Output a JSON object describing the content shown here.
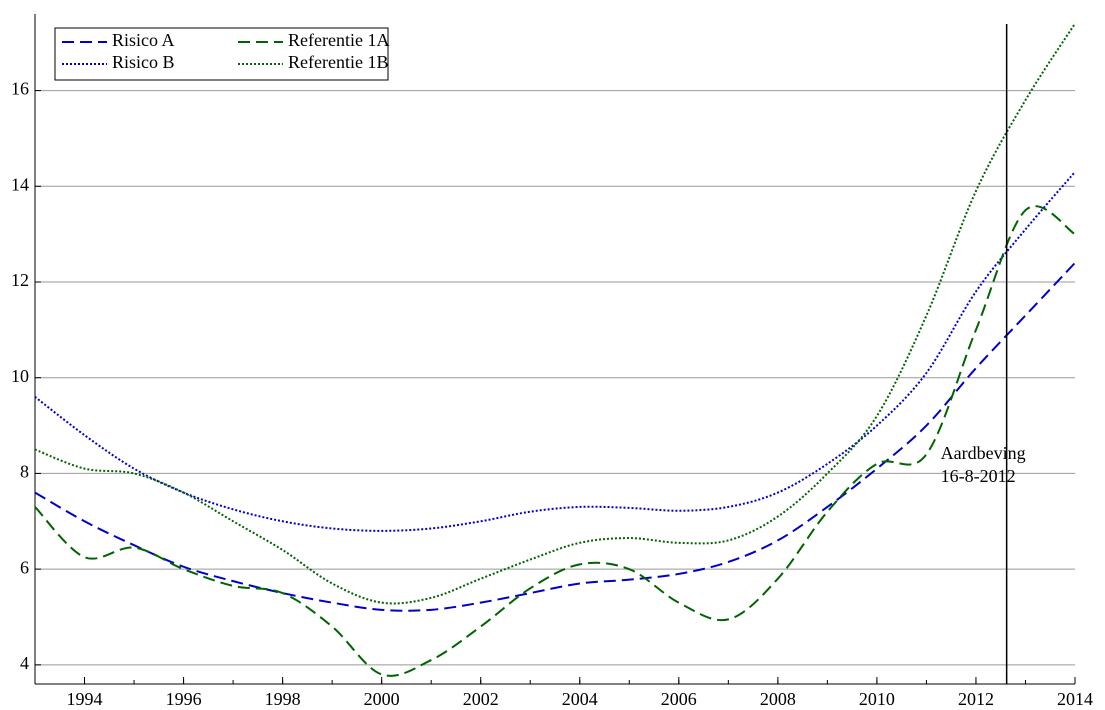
{
  "chart_data": {
    "type": "line",
    "x": [
      1993,
      1994,
      1995,
      1996,
      1997,
      1998,
      1999,
      2000,
      2001,
      2002,
      2003,
      2004,
      2005,
      2006,
      2007,
      2008,
      2009,
      2010,
      2011,
      2012,
      2013,
      2014
    ],
    "series": [
      {
        "name": "Risico A",
        "color": "#0000cc",
        "dash": "dashed",
        "values": [
          7.6,
          7.0,
          6.5,
          6.05,
          5.75,
          5.5,
          5.3,
          5.15,
          5.15,
          5.3,
          5.5,
          5.7,
          5.78,
          5.9,
          6.15,
          6.6,
          7.3,
          8.1,
          9.0,
          10.2,
          11.3,
          12.4
        ]
      },
      {
        "name": "Risico B",
        "color": "#0000cc",
        "dash": "dotted",
        "values": [
          9.6,
          8.8,
          8.1,
          7.6,
          7.25,
          7.0,
          6.85,
          6.8,
          6.85,
          7.0,
          7.2,
          7.3,
          7.28,
          7.22,
          7.3,
          7.6,
          8.2,
          9.0,
          10.1,
          11.8,
          13.1,
          14.3
        ]
      },
      {
        "name": "Referentie 1A",
        "color": "#006400",
        "dash": "dashed",
        "values": [
          7.3,
          6.25,
          6.45,
          6.0,
          5.65,
          5.5,
          4.8,
          3.8,
          4.1,
          4.8,
          5.6,
          6.1,
          6.0,
          5.3,
          4.95,
          5.8,
          7.2,
          8.2,
          8.4,
          11.0,
          13.5,
          13.0
        ]
      },
      {
        "name": "Referentie 1B",
        "color": "#006400",
        "dash": "dotted",
        "values": [
          8.5,
          8.1,
          8.0,
          7.6,
          7.0,
          6.4,
          5.7,
          5.3,
          5.4,
          5.8,
          6.2,
          6.55,
          6.65,
          6.55,
          6.6,
          7.1,
          8.0,
          9.2,
          11.3,
          13.9,
          15.8,
          17.4
        ]
      }
    ],
    "xlim": [
      1993,
      2014
    ],
    "xticks": [
      1994,
      1996,
      1998,
      2000,
      2002,
      2004,
      2006,
      2008,
      2010,
      2012,
      2014
    ],
    "ylim": [
      3.6,
      17.6
    ],
    "yticks": [
      4,
      6,
      8,
      10,
      12,
      14,
      16
    ],
    "grid": true,
    "legend": "upper-left",
    "annotation": {
      "x": 2012.62,
      "lines": [
        "Aardbeving",
        "16-8-2012"
      ]
    }
  }
}
